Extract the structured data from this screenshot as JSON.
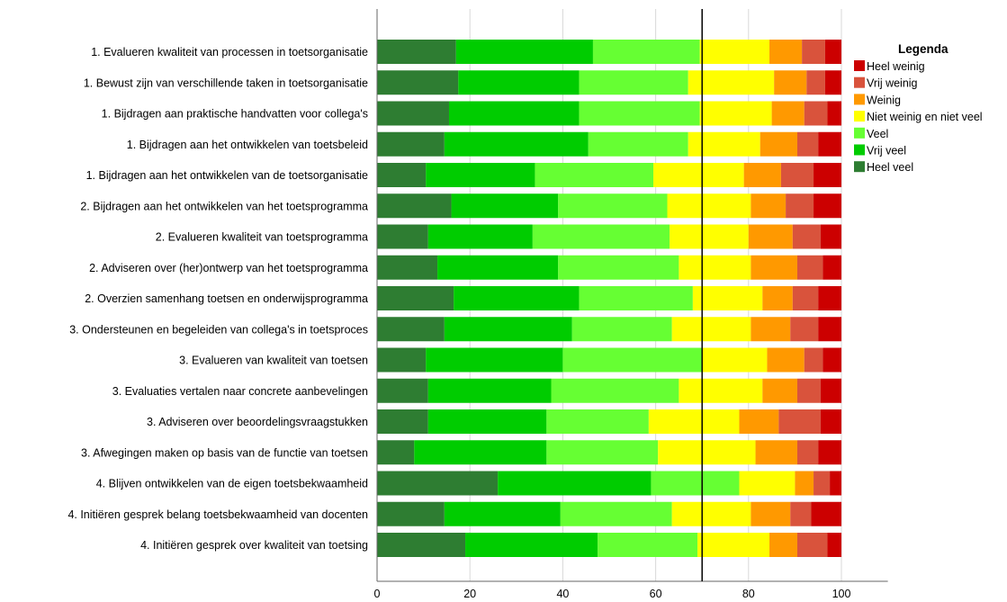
{
  "chart_data": {
    "type": "bar",
    "orientation": "horizontal",
    "stacked": true,
    "categories": [
      "1. Evalueren kwaliteit van processen in toetsorganisatie",
      "1. Bewust zijn van verschillende taken in toetsorganisatie",
      "1. Bijdragen aan praktische handvatten voor collega's",
      "1. Bijdragen aan het ontwikkelen van toetsbeleid",
      "1. Bijdragen aan het ontwikkelen van de toetsorganisatie",
      "2. Bijdragen aan het ontwikkelen van het toetsprogramma",
      "2. Evalueren kwaliteit van toetsprogramma",
      "2. Adviseren over (her)ontwerp van het toetsprogramma",
      "2. Overzien samenhang toetsen en onderwijsprogramma",
      "3. Ondersteunen en begeleiden van collega's in toetsproces",
      "3. Evalueren van kwaliteit van toetsen",
      "3. Evaluaties vertalen naar concrete aanbevelingen",
      "3. Adviseren over beoordelingsvraagstukken",
      "3. Afwegingen maken op basis van de functie van toetsen",
      "4. Blijven ontwikkelen van de eigen toetsbekwaamheid",
      "4. Initiëren gesprek belang toetsbekwaamheid van docenten",
      "4. Initiëren gesprek over kwaliteit van toetsing"
    ],
    "series": [
      {
        "name": "Heel veel",
        "color": "#2E7D32",
        "values": [
          17,
          17.5,
          15.5,
          14.5,
          10.5,
          16,
          11,
          13,
          16.5,
          14.5,
          10.5,
          11,
          11,
          8,
          26,
          14.5,
          19
        ]
      },
      {
        "name": "Vrij veel",
        "color": "#00CC00",
        "values": [
          29.5,
          26,
          28,
          31,
          23.5,
          23,
          22.5,
          26,
          27,
          27.5,
          29.5,
          26.5,
          25.5,
          28.5,
          33,
          25,
          28.5
        ]
      },
      {
        "name": "Veel",
        "color": "#66FF33",
        "values": [
          23,
          23.5,
          26,
          21.5,
          25.5,
          23.5,
          29.5,
          26,
          24.5,
          21.5,
          30,
          27.5,
          22,
          24,
          19,
          24,
          21.5
        ]
      },
      {
        "name": "Niet weinig en niet veel",
        "color": "#FFFF00",
        "values": [
          15,
          18.5,
          15.5,
          15.5,
          19.5,
          18,
          17,
          15.5,
          15,
          17,
          14,
          18,
          19.5,
          21,
          12,
          17,
          15.5
        ]
      },
      {
        "name": "Weinig",
        "color": "#FF9900",
        "values": [
          7,
          7,
          7,
          8,
          8,
          7.5,
          9.5,
          10,
          6.5,
          8.5,
          8,
          7.5,
          8.5,
          9,
          4,
          8.5,
          6
        ]
      },
      {
        "name": "Vrij weinig",
        "color": "#D9533C",
        "values": [
          5,
          4,
          5,
          4.5,
          7,
          6,
          6,
          5.5,
          5.5,
          6,
          4,
          5,
          9,
          4.5,
          3.5,
          4.5,
          6.5
        ]
      },
      {
        "name": "Heel weinig",
        "color": "#CC0000",
        "values": [
          3.5,
          3.5,
          3,
          5,
          6,
          6,
          4.5,
          4,
          5,
          5,
          4,
          4.5,
          4.5,
          5,
          2.5,
          6.5,
          3
        ]
      }
    ],
    "xlim": [
      0,
      110
    ],
    "xticks": [
      0,
      20,
      40,
      60,
      80,
      100
    ],
    "reference_line": 70,
    "legend": {
      "title": "Legenda",
      "placement": "right",
      "order": [
        "Heel weinig",
        "Vrij weinig",
        "Weinig",
        "Niet weinig en niet veel",
        "Veel",
        "Vrij veel",
        "Heel veel"
      ]
    },
    "grid": true,
    "title": "",
    "xlabel": "",
    "ylabel": ""
  }
}
